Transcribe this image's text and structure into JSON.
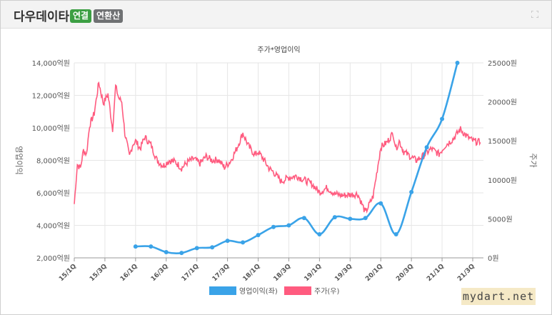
{
  "header": {
    "title": "다우데이타",
    "badge_consolidated": "연결",
    "badge_annualized": "연환산"
  },
  "watermark": "mydart.net",
  "colors": {
    "profit": "#3aa3e8",
    "price": "#ff5b7f",
    "grid": "#e6e6e6"
  },
  "chart_data": {
    "type": "line",
    "title": "주가*영업이익",
    "y_left": {
      "label": "영업이익",
      "range": [
        2000,
        14000
      ],
      "ticks": [
        "2,000억원",
        "4,000억원",
        "6,000억원",
        "8,000억원",
        "10,000억원",
        "12,000억원",
        "14,000억원"
      ],
      "tick_values": [
        2000,
        4000,
        6000,
        8000,
        10000,
        12000,
        14000
      ]
    },
    "y_right": {
      "label": "주가",
      "range": [
        0,
        25000
      ],
      "ticks": [
        "0원",
        "5000원",
        "10000원",
        "15000원",
        "20000원",
        "25000원"
      ],
      "tick_values": [
        0,
        5000,
        10000,
        15000,
        20000,
        25000
      ]
    },
    "x_ticks": [
      "15/1Q",
      "15/3Q",
      "16/1Q",
      "16/3Q",
      "17/1Q",
      "17/3Q",
      "18/1Q",
      "18/3Q",
      "19/1Q",
      "19/3Q",
      "20/1Q",
      "20/3Q",
      "21/1Q",
      "21/3Q"
    ],
    "x_range": [
      0,
      26.7
    ],
    "series": [
      {
        "name": "영업이익(좌)",
        "axis": "left",
        "x": [
          4,
          5,
          6,
          7,
          8,
          9,
          10,
          11,
          12,
          13,
          14,
          15,
          16,
          17,
          18,
          19,
          20,
          21,
          22,
          23,
          24,
          25
        ],
        "values": [
          2700,
          2700,
          2350,
          2300,
          2600,
          2650,
          3050,
          2950,
          3400,
          3900,
          4000,
          4450,
          3450,
          4500,
          4400,
          4450,
          5350,
          3450,
          6050,
          8800,
          10550,
          14000
        ]
      },
      {
        "name": "주가(우)",
        "axis": "right",
        "x": [
          0,
          0.2,
          0.4,
          0.6,
          0.8,
          1,
          1.3,
          1.6,
          1.9,
          2.2,
          2.5,
          2.7,
          2.9,
          3.1,
          3.3,
          3.6,
          3.8,
          4,
          4.3,
          4.6,
          5,
          5.4,
          5.8,
          6.2,
          6.6,
          7,
          7.4,
          7.8,
          8.2,
          8.6,
          9,
          9.4,
          9.8,
          10.2,
          10.6,
          11,
          11.4,
          11.8,
          12,
          12.3,
          12.7,
          13,
          13.5,
          14,
          14.5,
          15,
          15.5,
          16,
          16.5,
          17,
          17.5,
          18,
          18.5,
          19,
          19.5,
          20,
          20.4,
          20.8,
          21,
          21.2,
          21.5,
          21.8,
          22.3,
          22.8,
          23.3,
          23.8,
          24.2,
          24.7,
          25.2,
          25.6,
          26,
          26.5
        ],
        "values": [
          6900,
          12000,
          11500,
          13800,
          13300,
          17000,
          18500,
          22500,
          19800,
          21000,
          16500,
          22000,
          20500,
          20000,
          16000,
          13000,
          14500,
          15000,
          14000,
          15500,
          14500,
          12500,
          11800,
          12500,
          12300,
          11500,
          12300,
          12700,
          12100,
          13000,
          12500,
          12600,
          11600,
          12400,
          14000,
          16000,
          14200,
          13200,
          13600,
          12800,
          11500,
          11000,
          9800,
          10300,
          10500,
          10000,
          9500,
          8400,
          9000,
          8200,
          8000,
          8100,
          8200,
          5800,
          7900,
          14200,
          14800,
          16000,
          14000,
          15000,
          13600,
          13200,
          12500,
          13100,
          14000,
          13300,
          14400,
          15200,
          16500,
          15600,
          15000,
          14800
        ]
      }
    ],
    "legend": [
      "영업이익(좌)",
      "주가(우)"
    ],
    "legend_position": "bottom",
    "grid": true
  }
}
